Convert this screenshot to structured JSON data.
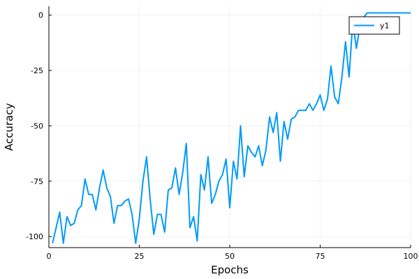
{
  "chart_data": {
    "type": "line",
    "xlabel": "Epochs",
    "ylabel": "Accuracy",
    "xlim": [
      0,
      100
    ],
    "ylim": [
      -105,
      4
    ],
    "x_ticks": [
      0,
      25,
      50,
      75,
      100
    ],
    "y_ticks": [
      0,
      -25,
      -50,
      -75,
      -100
    ],
    "x_tick_labels": [
      "0",
      "25",
      "50",
      "75",
      "100"
    ],
    "y_tick_labels": [
      "0",
      "-25",
      "-50",
      "-75",
      "-100"
    ],
    "grid": true,
    "legend_position": "top-right",
    "series": [
      {
        "name": "y1",
        "color": "#009af9",
        "x": [
          1,
          2,
          3,
          4,
          5,
          6,
          7,
          8,
          9,
          10,
          11,
          12,
          13,
          14,
          15,
          16,
          17,
          18,
          19,
          20,
          21,
          22,
          23,
          24,
          25,
          26,
          27,
          28,
          29,
          30,
          31,
          32,
          33,
          34,
          35,
          36,
          37,
          38,
          39,
          40,
          41,
          42,
          43,
          44,
          45,
          46,
          47,
          48,
          49,
          50,
          51,
          52,
          53,
          54,
          55,
          56,
          57,
          58,
          59,
          60,
          61,
          62,
          63,
          64,
          65,
          66,
          67,
          68,
          69,
          70,
          71,
          72,
          73,
          74,
          75,
          76,
          77,
          78,
          79,
          80,
          81,
          82,
          83,
          84,
          85,
          86,
          87,
          88,
          89,
          90,
          91,
          92,
          93,
          94,
          95,
          96,
          97,
          98,
          99,
          100
        ],
        "values": [
          -103,
          -96,
          -89,
          -103,
          -91,
          -95,
          -94,
          -88,
          -86,
          -74,
          -81,
          -81,
          -88,
          -78,
          -70,
          -78,
          -82,
          -94,
          -86,
          -86,
          -84,
          -83,
          -90,
          -103,
          -92,
          -75,
          -64,
          -83,
          -99,
          -90,
          -90,
          -98,
          -79,
          -78,
          -69,
          -81,
          -71,
          -58,
          -96,
          -91,
          -102,
          -72,
          -79,
          -64,
          -85,
          -81,
          -75,
          -72,
          -65,
          -87,
          -66,
          -74,
          -50,
          -73,
          -59,
          -62,
          -64,
          -59,
          -68,
          -61,
          -46,
          -53,
          -44,
          -66,
          -48,
          -56,
          -47,
          -46,
          -43,
          -43,
          -43,
          -40,
          -43,
          -40,
          -36,
          -43,
          -38,
          -23,
          -37,
          -40,
          -28,
          -12,
          -28,
          -3,
          -15,
          -5,
          -1,
          1,
          1,
          1,
          1,
          1,
          1,
          1,
          1,
          1,
          1,
          1,
          1,
          1
        ]
      }
    ]
  }
}
